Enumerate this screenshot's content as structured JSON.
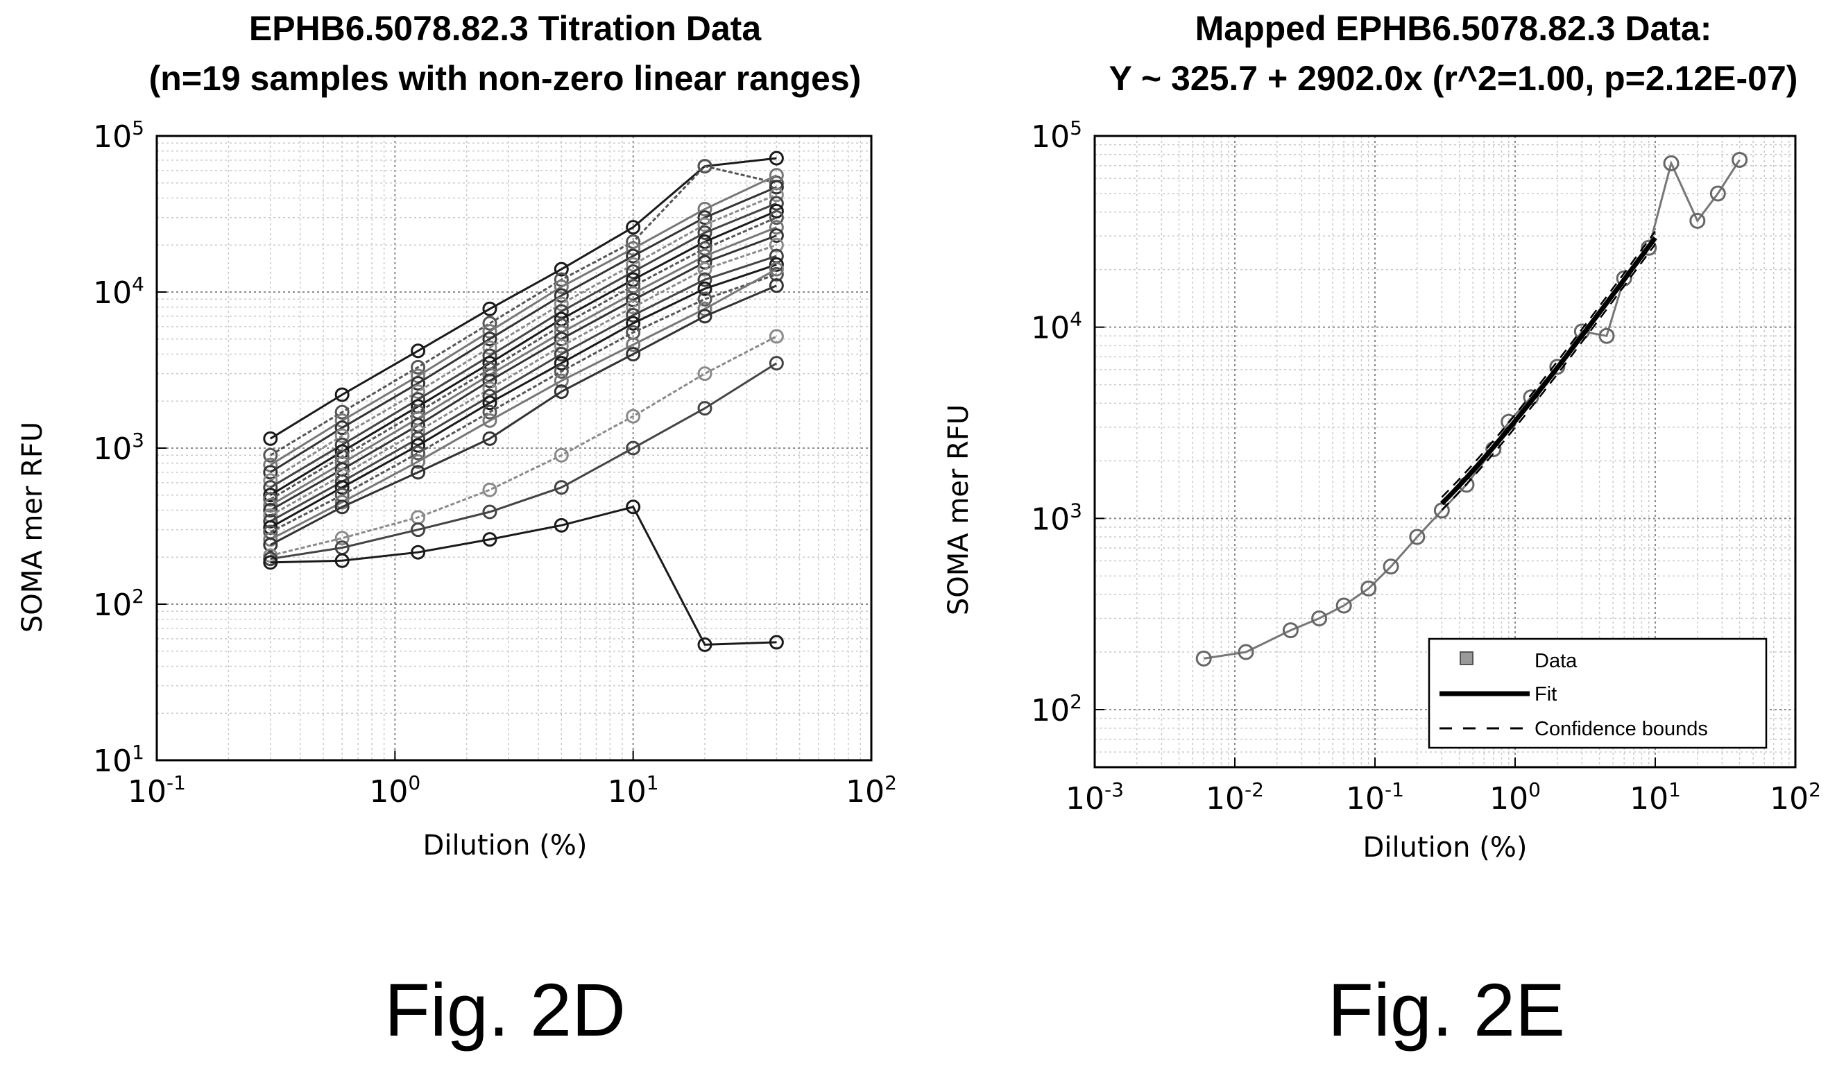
{
  "figures": {
    "left_label": "Fig. 2D",
    "right_label": "Fig. 2E"
  },
  "chart_data": [
    {
      "id": "fig2d",
      "type": "line",
      "title": "EPHB6.5078.82.3 Titration Data",
      "subtitle": "(n=19 samples with non-zero linear ranges)",
      "xlabel": "Dilution (%)",
      "ylabel": "SOMA mer RFU",
      "xscale": "log",
      "yscale": "log",
      "xlim": [
        0.1,
        100
      ],
      "ylim": [
        10,
        100000
      ],
      "xticks": [
        {
          "base": "10",
          "exp": "-1"
        },
        {
          "base": "10",
          "exp": "0"
        },
        {
          "base": "10",
          "exp": "1"
        },
        {
          "base": "10",
          "exp": "2"
        }
      ],
      "yticks": [
        {
          "base": "10",
          "exp": "1"
        },
        {
          "base": "10",
          "exp": "2"
        },
        {
          "base": "10",
          "exp": "3"
        },
        {
          "base": "10",
          "exp": "4"
        },
        {
          "base": "10",
          "exp": "5"
        }
      ],
      "grid": true,
      "x": [
        0.3,
        0.6,
        1.25,
        2.5,
        5,
        10,
        20,
        40
      ],
      "series": [
        {
          "values": [
            1150,
            2200,
            4200,
            7800,
            14000,
            26000,
            64000,
            72000
          ]
        },
        {
          "values": [
            900,
            1700,
            3300,
            6300,
            12000,
            21000,
            64000,
            50000
          ]
        },
        {
          "values": [
            780,
            1500,
            2900,
            5600,
            10800,
            19000,
            34000,
            56000
          ]
        },
        {
          "values": [
            700,
            1350,
            2600,
            5000,
            9500,
            17000,
            30000,
            47000
          ]
        },
        {
          "values": [
            620,
            1200,
            2300,
            4400,
            8400,
            15000,
            27000,
            42000
          ]
        },
        {
          "values": [
            560,
            1050,
            2050,
            3900,
            7500,
            13500,
            24000,
            37000
          ]
        },
        {
          "values": [
            500,
            950,
            1850,
            3500,
            6700,
            12000,
            21000,
            33000
          ]
        },
        {
          "values": [
            470,
            880,
            1700,
            3200,
            6100,
            10900,
            19000,
            30000
          ]
        },
        {
          "values": [
            430,
            800,
            1550,
            2950,
            5500,
            9800,
            17000,
            26000
          ]
        },
        {
          "values": [
            400,
            730,
            1400,
            2700,
            5000,
            8900,
            15500,
            23000
          ]
        },
        {
          "values": [
            370,
            670,
            1280,
            2400,
            4500,
            8000,
            14000,
            20000
          ]
        },
        {
          "values": [
            340,
            610,
            1150,
            2150,
            4000,
            7100,
            12000,
            17000
          ]
        },
        {
          "values": [
            310,
            560,
            1040,
            1950,
            3500,
            6300,
            10500,
            15000
          ]
        },
        {
          "values": [
            290,
            500,
            930,
            1700,
            3100,
            5500,
            9000,
            13000
          ]
        },
        {
          "values": [
            260,
            450,
            820,
            1500,
            2700,
            4600,
            7800,
            14000
          ]
        },
        {
          "values": [
            240,
            420,
            700,
            1150,
            2300,
            4000,
            7000,
            11000
          ]
        },
        {
          "values": [
            205,
            265,
            360,
            540,
            900,
            1600,
            3000,
            5200
          ]
        },
        {
          "values": [
            195,
            230,
            300,
            390,
            560,
            1000,
            1800,
            3500
          ]
        },
        {
          "values": [
            185,
            190,
            215,
            260,
            320,
            420,
            55,
            57
          ]
        }
      ]
    },
    {
      "id": "fig2e",
      "type": "line",
      "title": "Mapped EPHB6.5078.82.3 Data:",
      "subtitle": "Y ~ 325.7 + 2902.0x (r^2=1.00, p=2.12E-07)",
      "xlabel": "Dilution (%)",
      "ylabel": "SOMA mer RFU",
      "xscale": "log",
      "yscale": "log",
      "xlim": [
        0.001,
        100
      ],
      "ylim": [
        50,
        100000
      ],
      "xticks": [
        {
          "base": "10",
          "exp": "-3"
        },
        {
          "base": "10",
          "exp": "-2"
        },
        {
          "base": "10",
          "exp": "-1"
        },
        {
          "base": "10",
          "exp": "0"
        },
        {
          "base": "10",
          "exp": "1"
        },
        {
          "base": "10",
          "exp": "2"
        }
      ],
      "yticks": [
        {
          "base": "10",
          "exp": "2"
        },
        {
          "base": "10",
          "exp": "3"
        },
        {
          "base": "10",
          "exp": "4"
        },
        {
          "base": "10",
          "exp": "5"
        }
      ],
      "grid": true,
      "legend": {
        "position": "bottom-right",
        "entries": [
          "Data",
          "Fit",
          "Confidence bounds"
        ]
      },
      "fit": {
        "intercept": 325.7,
        "slope": 2902.0,
        "x_range": [
          0.3,
          10
        ]
      },
      "data_points": [
        {
          "x": 0.006,
          "y": 185
        },
        {
          "x": 0.012,
          "y": 200
        },
        {
          "x": 0.025,
          "y": 260
        },
        {
          "x": 0.04,
          "y": 300
        },
        {
          "x": 0.06,
          "y": 350
        },
        {
          "x": 0.09,
          "y": 430
        },
        {
          "x": 0.13,
          "y": 560
        },
        {
          "x": 0.2,
          "y": 800
        },
        {
          "x": 0.3,
          "y": 1100
        },
        {
          "x": 0.45,
          "y": 1500
        },
        {
          "x": 0.7,
          "y": 2300
        },
        {
          "x": 0.9,
          "y": 3200
        },
        {
          "x": 1.3,
          "y": 4300
        },
        {
          "x": 2.0,
          "y": 6200
        },
        {
          "x": 3.0,
          "y": 9500
        },
        {
          "x": 4.5,
          "y": 9000
        },
        {
          "x": 6.0,
          "y": 18000
        },
        {
          "x": 9.0,
          "y": 26000
        },
        {
          "x": 13.0,
          "y": 72000
        },
        {
          "x": 20.0,
          "y": 36000
        },
        {
          "x": 28.0,
          "y": 50000
        },
        {
          "x": 40.0,
          "y": 75000
        }
      ]
    }
  ]
}
